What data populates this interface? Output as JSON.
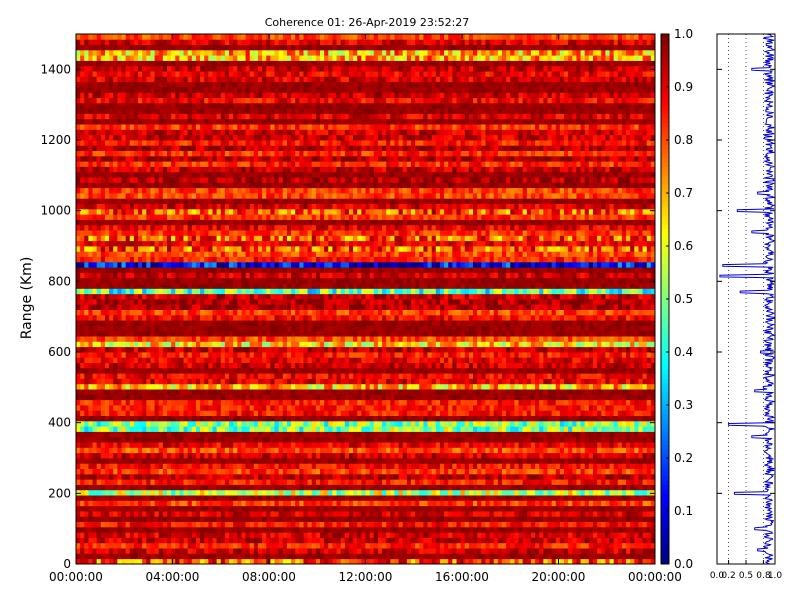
{
  "chart_data": [
    {
      "type": "heatmap",
      "title": "Coherence 01: 26-Apr-2019 23:52:27",
      "xlabel": "",
      "ylabel": "Range (Km)",
      "x_ticks": [
        "00:00:00",
        "04:00:00",
        "08:00:00",
        "12:00:00",
        "16:00:00",
        "20:00:00",
        "00:00:00"
      ],
      "y_ticks": [
        0,
        200,
        400,
        600,
        800,
        1000,
        1200,
        1400
      ],
      "ylim": [
        0,
        1500
      ],
      "time_range_hours": [
        0,
        24
      ],
      "colormap": "jet",
      "colorbar": {
        "range": [
          0,
          1
        ],
        "ticks": [
          "0.0",
          "0.1",
          "0.2",
          "0.3",
          "0.4",
          "0.5",
          "0.6",
          "0.7",
          "0.8",
          "0.9",
          "1.0"
        ]
      },
      "base_coherence": 0.88,
      "low_coherence_bands": [
        {
          "range_km": 845,
          "value": 0.12
        },
        {
          "range_km": 770,
          "value": 0.45
        },
        {
          "range_km": 390,
          "value": 0.5
        },
        {
          "range_km": 205,
          "value": 0.55
        },
        {
          "range_km": 620,
          "value": 0.65
        },
        {
          "range_km": 500,
          "value": 0.68
        },
        {
          "range_km": 1440,
          "value": 0.7
        }
      ]
    },
    {
      "type": "line",
      "xlabel": "",
      "ylabel": "",
      "x_ticks": [
        "0.0",
        "0.2",
        "0.5",
        "0.8",
        "1.0"
      ],
      "xlim": [
        0,
        1
      ],
      "ylim": [
        0,
        1500
      ],
      "grid": "vertical dotted",
      "series_color": "#0000cc",
      "profile": [
        {
          "range_km": 1470,
          "value": 0.85
        },
        {
          "range_km": 1400,
          "value": 0.6
        },
        {
          "range_km": 1250,
          "value": 0.85
        },
        {
          "range_km": 1050,
          "value": 0.7
        },
        {
          "range_km": 1000,
          "value": 0.35
        },
        {
          "range_km": 940,
          "value": 0.6
        },
        {
          "range_km": 845,
          "value": 0.1
        },
        {
          "range_km": 815,
          "value": 0.05
        },
        {
          "range_km": 770,
          "value": 0.4
        },
        {
          "range_km": 600,
          "value": 0.75
        },
        {
          "range_km": 500,
          "value": 0.8
        },
        {
          "range_km": 490,
          "value": 0.65
        },
        {
          "range_km": 395,
          "value": 0.2
        },
        {
          "range_km": 360,
          "value": 0.6
        },
        {
          "range_km": 200,
          "value": 0.3
        },
        {
          "range_km": 100,
          "value": 0.65
        },
        {
          "range_km": 40,
          "value": 0.7
        }
      ]
    }
  ]
}
